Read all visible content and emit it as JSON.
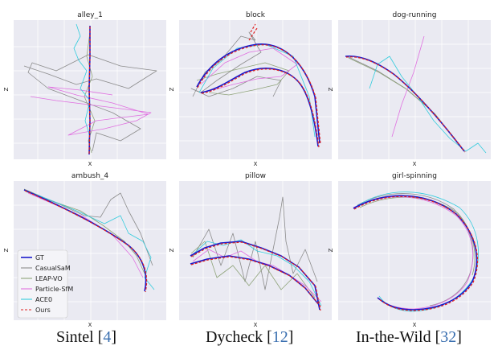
{
  "series": [
    {
      "name": "GT",
      "color": "#1a1acc",
      "style": "solid"
    },
    {
      "name": "CasualSaM",
      "color": "#8c8c8c",
      "style": "solid"
    },
    {
      "name": "LEAP-VO",
      "color": "#8fa37a",
      "style": "solid"
    },
    {
      "name": "Particle-SfM",
      "color": "#e070e0",
      "style": "solid"
    },
    {
      "name": "ACE0",
      "color": "#33ccdd",
      "style": "solid"
    },
    {
      "name": "Ours",
      "color": "#e02020",
      "style": "dashed"
    }
  ],
  "captions": [
    {
      "text": "Sintel [",
      "ref": "4",
      "close": "]"
    },
    {
      "text": "Dycheck [",
      "ref": "12",
      "close": "]"
    },
    {
      "text": "In-the-Wild [",
      "ref": "32",
      "close": "]"
    }
  ],
  "chart_data": [
    {
      "type": "line",
      "title": "alley_1",
      "xlabel": "X",
      "ylabel": "Z",
      "dataset": "Sintel",
      "series_names": [
        "GT",
        "CasualSaM",
        "LEAP-VO",
        "Particle-SfM",
        "ACE0",
        "Ours"
      ]
    },
    {
      "type": "line",
      "title": "block",
      "xlabel": "X",
      "ylabel": "Z",
      "dataset": "Dycheck",
      "series_names": [
        "GT",
        "CasualSaM",
        "LEAP-VO",
        "Particle-SfM",
        "ACE0",
        "Ours"
      ]
    },
    {
      "type": "line",
      "title": "dog-running",
      "xlabel": "X",
      "ylabel": "Z",
      "dataset": "In-the-Wild",
      "series_names": [
        "GT",
        "CasualSaM",
        "LEAP-VO",
        "Particle-SfM",
        "ACE0",
        "Ours"
      ]
    },
    {
      "type": "line",
      "title": "ambush_4",
      "xlabel": "X",
      "ylabel": "Z",
      "dataset": "Sintel",
      "series_names": [
        "GT",
        "CasualSaM",
        "LEAP-VO",
        "Particle-SfM",
        "ACE0",
        "Ours"
      ],
      "legend_position": "bottom-left"
    },
    {
      "type": "line",
      "title": "pillow",
      "xlabel": "X",
      "ylabel": "Z",
      "dataset": "Dycheck",
      "series_names": [
        "GT",
        "CasualSaM",
        "LEAP-VO",
        "Particle-SfM",
        "ACE0",
        "Ours"
      ]
    },
    {
      "type": "line",
      "title": "girl-spinning",
      "xlabel": "X",
      "ylabel": "Z",
      "dataset": "In-the-Wild",
      "series_names": [
        "GT",
        "CasualSaM",
        "LEAP-VO",
        "Particle-SfM",
        "ACE0",
        "Ours"
      ]
    }
  ]
}
